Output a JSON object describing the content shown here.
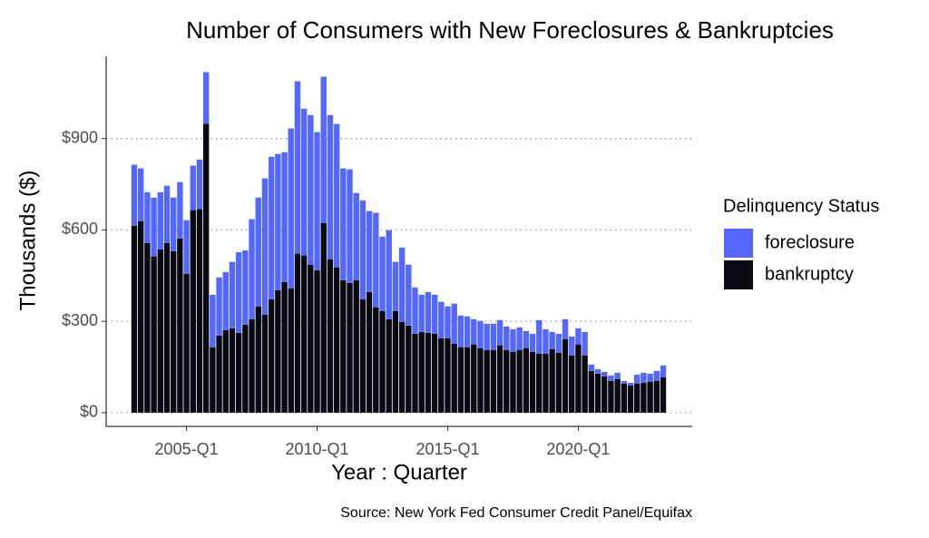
{
  "chart_data": {
    "type": "bar",
    "stacked": true,
    "title": "Number of Consumers with New Foreclosures & Bankruptcies",
    "x_label": "Year : Quarter",
    "y_label": "Thousands ($)",
    "source": "Source: New York Fed Consumer Credit Panel/Equifax",
    "legend_title": "Delinquency Status",
    "legend": "right",
    "grid": true,
    "categories": [
      null,
      null,
      null,
      null,
      null,
      null,
      null,
      null,
      "2005-Q1",
      null,
      null,
      null,
      null,
      null,
      null,
      null,
      null,
      null,
      null,
      null,
      null,
      null,
      null,
      null,
      null,
      null,
      null,
      null,
      "2010-Q1",
      null,
      null,
      null,
      null,
      null,
      null,
      null,
      null,
      null,
      null,
      null,
      null,
      null,
      null,
      null,
      null,
      null,
      null,
      null,
      "2015-Q1",
      null,
      null,
      null,
      null,
      null,
      null,
      null,
      null,
      null,
      null,
      null,
      null,
      null,
      null,
      null,
      null,
      null,
      null,
      null,
      "2020-Q1",
      null,
      null,
      null,
      null,
      null,
      null,
      null,
      null,
      null,
      null,
      null,
      null,
      null
    ],
    "series": [
      {
        "name": "foreclosure",
        "color": "#5468ff",
        "values": [
          200,
          173,
          167,
          193,
          188,
          188,
          176,
          185,
          176,
          146,
          163,
          170,
          172,
          191,
          191,
          218,
          265,
          244,
          328,
          357,
          447,
          468,
          447,
          426,
          525,
          566,
          482,
          491,
          453,
          480,
          473,
          471,
          367,
          373,
          286,
          325,
          266,
          310,
          244,
          292,
          161,
          244,
          200,
          152,
          122,
          134,
          128,
          120,
          105,
          132,
          104,
          101,
          83,
          89,
          86,
          86,
          83,
          77,
          74,
          74,
          56,
          59,
          110,
          80,
          56,
          62,
          66,
          62,
          53,
          77,
          21,
          15,
          15,
          18,
          21,
          9,
          9,
          30,
          33,
          27,
          33,
          39
        ]
      },
      {
        "name": "bankruptcy",
        "color": "#0a0a12",
        "values": [
          614,
          629,
          557,
          513,
          536,
          557,
          530,
          572,
          456,
          665,
          668,
          948,
          215,
          253,
          271,
          277,
          262,
          289,
          307,
          349,
          322,
          372,
          402,
          429,
          408,
          522,
          516,
          486,
          468,
          623,
          504,
          477,
          435,
          426,
          435,
          372,
          396,
          346,
          334,
          307,
          334,
          298,
          286,
          259,
          265,
          262,
          259,
          244,
          244,
          226,
          215,
          215,
          224,
          212,
          206,
          206,
          221,
          206,
          200,
          206,
          212,
          200,
          194,
          194,
          209,
          197,
          241,
          188,
          224,
          188,
          137,
          128,
          119,
          104,
          110,
          95,
          89,
          95,
          98,
          101,
          104,
          116
        ]
      }
    ],
    "ylim": [
      -45,
      1170
    ],
    "yticks": [
      {
        "value": 0,
        "label": "$0"
      },
      {
        "value": 300,
        "label": "$300"
      },
      {
        "value": 600,
        "label": "$600"
      },
      {
        "value": 900,
        "label": "$900"
      }
    ]
  }
}
